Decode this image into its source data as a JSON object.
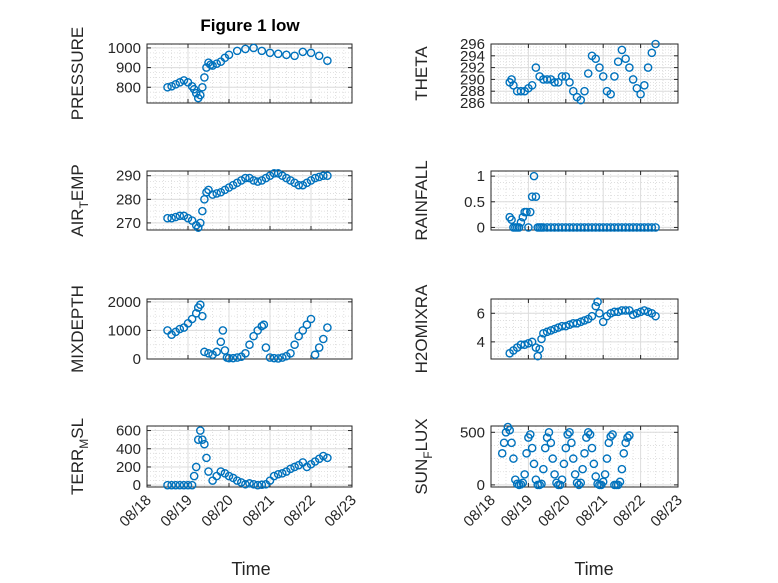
{
  "figure": {
    "title": "Figure 1 low",
    "marker_color": "#0072BD"
  },
  "chart_data": [
    {
      "type": "scatter",
      "ylabel": "PRESSURE",
      "ylim": [
        720,
        1020
      ],
      "yticks": [
        800,
        900,
        1000
      ],
      "xlim": [
        0,
        5
      ],
      "xticks": [
        "08/18",
        "08/19",
        "08/20",
        "08/21",
        "08/22",
        "08/23"
      ],
      "show_xticks": false,
      "x": [
        0.5,
        0.6,
        0.7,
        0.8,
        0.9,
        1.0,
        1.1,
        1.15,
        1.2,
        1.25,
        1.3,
        1.35,
        1.4,
        1.45,
        1.5,
        1.55,
        1.6,
        1.7,
        1.8,
        1.9,
        2.0,
        2.2,
        2.4,
        2.6,
        2.8,
        3.0,
        3.2,
        3.4,
        3.6,
        3.8,
        4.0,
        4.2,
        4.4
      ],
      "y": [
        800,
        805,
        815,
        825,
        835,
        825,
        805,
        790,
        770,
        745,
        760,
        800,
        850,
        900,
        925,
        915,
        910,
        920,
        930,
        950,
        965,
        985,
        995,
        1000,
        985,
        975,
        970,
        965,
        960,
        980,
        975,
        960,
        935
      ]
    },
    {
      "type": "scatter",
      "ylabel": "THETA",
      "ylim": [
        286,
        296
      ],
      "yticks": [
        286,
        288,
        290,
        292,
        294,
        296
      ],
      "xlim": [
        0,
        5
      ],
      "xticks": [
        "08/18",
        "08/19",
        "08/20",
        "08/21",
        "08/22",
        "08/23"
      ],
      "show_xticks": false,
      "x": [
        0.5,
        0.55,
        0.6,
        0.7,
        0.8,
        0.9,
        1.0,
        1.1,
        1.2,
        1.3,
        1.4,
        1.5,
        1.6,
        1.7,
        1.8,
        1.9,
        2.0,
        2.1,
        2.2,
        2.3,
        2.4,
        2.5,
        2.6,
        2.7,
        2.8,
        2.9,
        3.0,
        3.1,
        3.2,
        3.3,
        3.4,
        3.5,
        3.6,
        3.7,
        3.8,
        3.9,
        4.0,
        4.1,
        4.2,
        4.3,
        4.4
      ],
      "y": [
        289.5,
        290,
        289,
        288,
        288,
        288,
        288.5,
        289,
        292,
        290.5,
        290,
        290,
        290,
        289.5,
        289.5,
        290.5,
        290.5,
        289.5,
        288,
        287,
        286.5,
        288,
        291,
        294,
        293.5,
        292,
        290.5,
        288,
        287.5,
        290.5,
        293,
        295,
        293.5,
        292,
        290,
        288.5,
        287.5,
        289,
        292,
        294.5,
        296
      ]
    },
    {
      "type": "scatter",
      "ylabel": "AIR_TEMP",
      "ylabel_main": "AIR",
      "ylabel_sub": "T",
      "ylabel_rest": "EMP",
      "ylim": [
        267,
        292
      ],
      "yticks": [
        270,
        280,
        290
      ],
      "xlim": [
        0,
        5
      ],
      "xticks": [
        "08/18",
        "08/19",
        "08/20",
        "08/21",
        "08/22",
        "08/23"
      ],
      "show_xticks": false,
      "x": [
        0.5,
        0.6,
        0.7,
        0.8,
        0.9,
        1.0,
        1.1,
        1.2,
        1.25,
        1.3,
        1.35,
        1.4,
        1.45,
        1.5,
        1.6,
        1.7,
        1.8,
        1.9,
        2.0,
        2.1,
        2.2,
        2.3,
        2.4,
        2.5,
        2.6,
        2.7,
        2.8,
        2.9,
        3.0,
        3.1,
        3.2,
        3.3,
        3.4,
        3.5,
        3.6,
        3.7,
        3.8,
        3.9,
        4.0,
        4.1,
        4.2,
        4.3,
        4.4
      ],
      "y": [
        272,
        272,
        272.5,
        273,
        273,
        272,
        271,
        269,
        268,
        270,
        275,
        280,
        283,
        284,
        282,
        282.5,
        283,
        284,
        285,
        286,
        287,
        288,
        289,
        289,
        288,
        287.5,
        288,
        289,
        290,
        291,
        291,
        290,
        289,
        288,
        287,
        286,
        286,
        287,
        288,
        289,
        289.5,
        290,
        290
      ]
    },
    {
      "type": "scatter",
      "ylabel": "RAINFALL",
      "ylim": [
        -0.05,
        1.1
      ],
      "yticks": [
        0,
        0.5,
        1
      ],
      "yticklabels": [
        "0",
        "0.5",
        "1"
      ],
      "xlim": [
        0,
        5
      ],
      "xticks": [
        "08/18",
        "08/19",
        "08/20",
        "08/21",
        "08/22",
        "08/23"
      ],
      "show_xticks": false,
      "x": [
        0.5,
        0.55,
        0.6,
        0.65,
        0.7,
        0.75,
        0.8,
        0.85,
        0.9,
        0.95,
        1.0,
        1.05,
        1.1,
        1.15,
        1.2,
        1.25,
        1.3,
        1.35,
        1.4,
        1.5,
        1.6,
        1.7,
        1.8,
        1.9,
        2.0,
        2.1,
        2.2,
        2.3,
        2.4,
        2.5,
        2.6,
        2.7,
        2.8,
        2.9,
        3.0,
        3.1,
        3.2,
        3.3,
        3.4,
        3.5,
        3.6,
        3.7,
        3.8,
        3.9,
        4.0,
        4.1,
        4.2,
        4.3,
        4.4
      ],
      "y": [
        0.2,
        0.15,
        0,
        0,
        0,
        0,
        0.1,
        0.2,
        0.3,
        0.3,
        0,
        0.3,
        0.6,
        1.0,
        0.6,
        0,
        0,
        0,
        0,
        0,
        0,
        0,
        0,
        0,
        0,
        0,
        0,
        0,
        0,
        0,
        0,
        0,
        0,
        0,
        0,
        0,
        0,
        0,
        0,
        0,
        0,
        0,
        0,
        0,
        0,
        0,
        0,
        0,
        0
      ]
    },
    {
      "type": "scatter",
      "ylabel": "MIXDEPTH",
      "ylim": [
        0,
        2100
      ],
      "yticks": [
        0,
        1000,
        2000
      ],
      "xlim": [
        0,
        5
      ],
      "xticks": [
        "08/18",
        "08/19",
        "08/20",
        "08/21",
        "08/22",
        "08/23"
      ],
      "show_xticks": false,
      "x": [
        0.5,
        0.6,
        0.7,
        0.8,
        0.9,
        1.0,
        1.1,
        1.2,
        1.25,
        1.3,
        1.35,
        1.4,
        1.5,
        1.6,
        1.7,
        1.8,
        1.85,
        1.9,
        1.95,
        2.0,
        2.1,
        2.2,
        2.3,
        2.4,
        2.5,
        2.6,
        2.7,
        2.8,
        2.85,
        2.9,
        3.0,
        3.1,
        3.2,
        3.3,
        3.4,
        3.5,
        3.6,
        3.7,
        3.8,
        3.9,
        4.0,
        4.1,
        4.2,
        4.3,
        4.4
      ],
      "y": [
        1000,
        850,
        950,
        1050,
        1100,
        1250,
        1400,
        1600,
        1800,
        1900,
        1500,
        250,
        200,
        150,
        250,
        600,
        1000,
        300,
        50,
        30,
        30,
        50,
        80,
        200,
        500,
        800,
        1000,
        1150,
        1200,
        400,
        50,
        30,
        20,
        50,
        100,
        200,
        500,
        800,
        1000,
        1200,
        1400,
        150,
        400,
        700,
        1100
      ]
    },
    {
      "type": "scatter",
      "ylabel": "H2OMIXRA",
      "ylim": [
        2.8,
        7
      ],
      "yticks": [
        4,
        6
      ],
      "xlim": [
        0,
        5
      ],
      "xticks": [
        "08/18",
        "08/19",
        "08/20",
        "08/21",
        "08/22",
        "08/23"
      ],
      "show_xticks": false,
      "x": [
        0.5,
        0.6,
        0.7,
        0.8,
        0.9,
        1.0,
        1.1,
        1.2,
        1.25,
        1.3,
        1.35,
        1.4,
        1.5,
        1.6,
        1.7,
        1.8,
        1.9,
        2.0,
        2.1,
        2.2,
        2.3,
        2.4,
        2.5,
        2.6,
        2.7,
        2.8,
        2.85,
        2.9,
        3.0,
        3.1,
        3.2,
        3.3,
        3.4,
        3.5,
        3.6,
        3.7,
        3.8,
        3.9,
        4.0,
        4.1,
        4.2,
        4.3,
        4.4
      ],
      "y": [
        3.2,
        3.4,
        3.6,
        3.8,
        3.8,
        3.9,
        4.0,
        3.6,
        3.0,
        3.5,
        4.2,
        4.6,
        4.7,
        4.8,
        4.9,
        5.0,
        5.1,
        5.1,
        5.2,
        5.3,
        5.3,
        5.4,
        5.5,
        5.6,
        5.8,
        6.5,
        6.8,
        6.0,
        5.4,
        5.8,
        6.0,
        6.1,
        6.1,
        6.2,
        6.2,
        6.2,
        5.9,
        6.0,
        6.1,
        6.2,
        6.1,
        6.0,
        5.8
      ]
    },
    {
      "type": "scatter",
      "ylabel": "TERR_MSL",
      "ylabel_main": "TERR",
      "ylabel_sub": "M",
      "ylabel_rest": "SL",
      "ylim": [
        -20,
        650
      ],
      "yticks": [
        0,
        200,
        400,
        600
      ],
      "xlim": [
        0,
        5
      ],
      "xticks": [
        "08/18",
        "08/19",
        "08/20",
        "08/21",
        "08/22",
        "08/23"
      ],
      "show_xticks": true,
      "x": [
        0.5,
        0.6,
        0.7,
        0.8,
        0.9,
        1.0,
        1.1,
        1.15,
        1.2,
        1.25,
        1.3,
        1.35,
        1.4,
        1.45,
        1.5,
        1.6,
        1.7,
        1.8,
        1.9,
        2.0,
        2.1,
        2.2,
        2.3,
        2.4,
        2.5,
        2.6,
        2.7,
        2.8,
        2.9,
        3.0,
        3.1,
        3.2,
        3.3,
        3.4,
        3.5,
        3.6,
        3.7,
        3.8,
        3.9,
        4.0,
        4.1,
        4.2,
        4.3,
        4.4
      ],
      "y": [
        0,
        0,
        0,
        0,
        0,
        0,
        0,
        100,
        200,
        500,
        600,
        500,
        450,
        300,
        150,
        50,
        100,
        150,
        130,
        100,
        80,
        50,
        30,
        10,
        20,
        10,
        0,
        5,
        10,
        50,
        100,
        120,
        130,
        150,
        180,
        200,
        220,
        250,
        200,
        230,
        260,
        290,
        320,
        300
      ]
    },
    {
      "type": "scatter",
      "ylabel": "SUN_FLUX",
      "ylabel_main": "SUN",
      "ylabel_sub": "F",
      "ylabel_rest": "LUX",
      "ylim": [
        -20,
        560
      ],
      "yticks": [
        0,
        500
      ],
      "xlim": [
        0,
        5
      ],
      "xticks": [
        "08/18",
        "08/19",
        "08/20",
        "08/21",
        "08/22",
        "08/23"
      ],
      "show_xticks": true,
      "x": [
        0.3,
        0.35,
        0.4,
        0.45,
        0.5,
        0.55,
        0.6,
        0.65,
        0.7,
        0.75,
        0.8,
        0.85,
        0.9,
        0.95,
        1.0,
        1.05,
        1.1,
        1.15,
        1.2,
        1.25,
        1.3,
        1.35,
        1.4,
        1.45,
        1.5,
        1.55,
        1.6,
        1.65,
        1.7,
        1.75,
        1.8,
        1.85,
        1.9,
        1.95,
        2.0,
        2.05,
        2.1,
        2.15,
        2.2,
        2.25,
        2.3,
        2.35,
        2.4,
        2.45,
        2.5,
        2.55,
        2.6,
        2.65,
        2.7,
        2.75,
        2.8,
        2.85,
        2.9,
        2.95,
        3.0,
        3.05,
        3.1,
        3.15,
        3.2,
        3.25,
        3.3,
        3.35,
        3.4,
        3.45,
        3.5,
        3.55,
        3.6,
        3.65,
        3.7
      ],
      "y": [
        300,
        400,
        500,
        550,
        520,
        400,
        250,
        50,
        10,
        0,
        5,
        20,
        100,
        300,
        450,
        480,
        350,
        200,
        50,
        0,
        0,
        10,
        150,
        350,
        450,
        500,
        400,
        250,
        100,
        20,
        0,
        0,
        50,
        200,
        350,
        480,
        500,
        400,
        250,
        100,
        20,
        0,
        20,
        150,
        300,
        450,
        500,
        480,
        350,
        200,
        80,
        10,
        0,
        0,
        30,
        100,
        250,
        400,
        460,
        480,
        0,
        0,
        0,
        30,
        150,
        300,
        400,
        450,
        470
      ]
    }
  ],
  "xlabel": "Time"
}
